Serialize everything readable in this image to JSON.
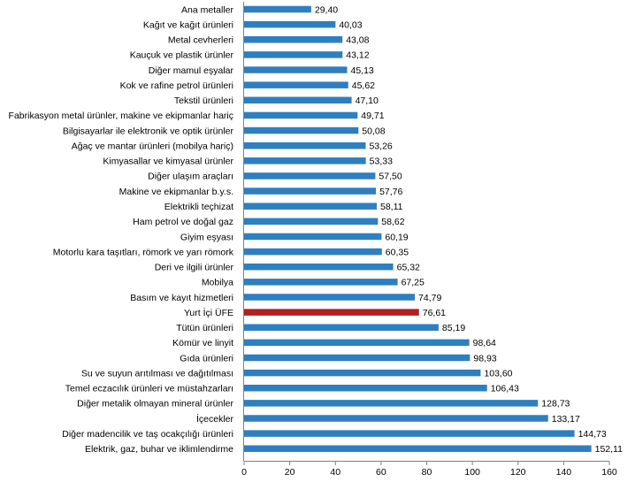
{
  "chart_data": {
    "type": "bar",
    "orientation": "horizontal",
    "title": "",
    "xlabel": "",
    "ylabel": "",
    "xlim": [
      0,
      160
    ],
    "x_ticks": [
      "0",
      "20",
      "40",
      "60",
      "80",
      "100",
      "120",
      "140",
      "160"
    ],
    "grid": false,
    "legend": "none",
    "categories": [
      "Ana metaller",
      "Kağıt ve kağıt ürünleri",
      "Metal cevherleri",
      "Kauçuk ve plastik ürünler",
      "Diğer mamul eşyalar",
      "Kok ve rafine petrol ürünleri",
      "Tekstil ürünleri",
      "Fabrikasyon metal ürünler, makine ve ekipmanlar hariç",
      "Bilgisayarlar ile elektronik ve optik ürünler",
      "Ağaç ve mantar ürünleri (mobilya hariç)",
      "Kimyasallar ve kimyasal ürünler",
      "Diğer ulaşım araçları",
      "Makine ve ekipmanlar b.y.s.",
      "Elektrikli teçhizat",
      "Ham petrol ve doğal gaz",
      "Giyim eşyası",
      "Motorlu kara taşıtları, römork ve yarı römork",
      "Deri ve ilgili ürünler",
      "Mobilya",
      "Basım ve kayıt hizmetleri",
      "Yurt İçi ÜFE",
      "Tütün ürünleri",
      "Kömür ve linyit",
      "Gıda ürünleri",
      "Su ve suyun arıtılması ve dağıtılması",
      "Temel eczacılık ürünleri ve müstahzarları",
      "Diğer metalik olmayan mineral ürünler",
      "İçecekler",
      "Diğer madencilik ve taş ocakçılığı ürünleri",
      "Elektrik, gaz, buhar ve iklimlendirme"
    ],
    "values": [
      29.4,
      40.03,
      43.08,
      43.12,
      45.13,
      45.62,
      47.1,
      49.71,
      50.08,
      53.26,
      53.33,
      57.5,
      57.76,
      58.11,
      58.62,
      60.19,
      60.35,
      65.32,
      67.25,
      74.79,
      76.61,
      85.19,
      98.64,
      98.93,
      103.6,
      106.43,
      128.73,
      133.17,
      144.73,
      152.11
    ],
    "value_labels": [
      "29,40",
      "40,03",
      "43,08",
      "43,12",
      "45,13",
      "45,62",
      "47,10",
      "49,71",
      "50,08",
      "53,26",
      "53,33",
      "57,50",
      "57,76",
      "58,11",
      "58,62",
      "60,19",
      "60,35",
      "65,32",
      "67,25",
      "74,79",
      "76,61",
      "85,19",
      "98,64",
      "98,93",
      "103,60",
      "106,43",
      "128,73",
      "133,17",
      "144,73",
      "152,11"
    ],
    "highlight_index": 20,
    "colors": {
      "bar": "#2e7fc0",
      "highlight": "#b21f1f",
      "axis": "#808080"
    }
  }
}
